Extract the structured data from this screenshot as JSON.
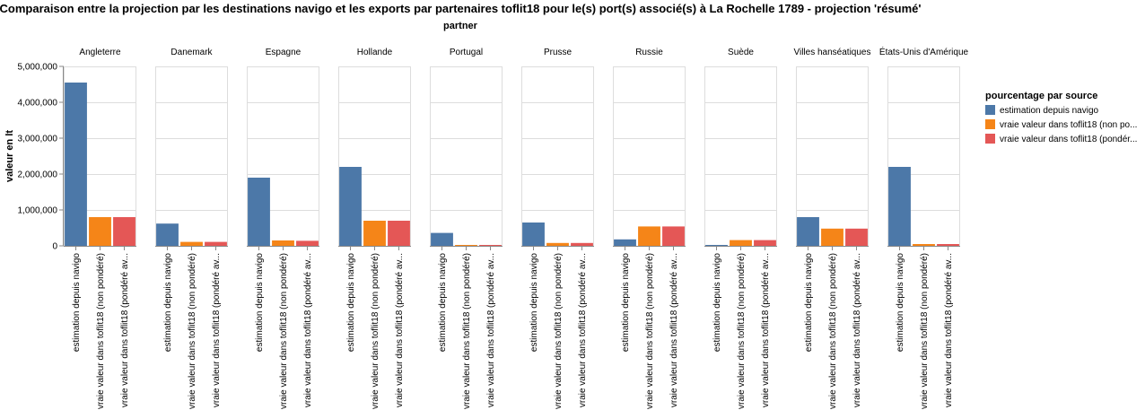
{
  "colors": {
    "estimation": "#4c78a8",
    "non_pondere": "#f58518",
    "pondere": "#e45756",
    "grid": "#dddddd",
    "axis": "#888888"
  },
  "chart_data": {
    "type": "bar",
    "title": "Comparaison entre la projection par les destinations navigo et les exports par partenaires toflit18 pour le(s) port(s) associé(s) à La Rochelle 1789 - projection 'résumé'",
    "facet_title": "partner",
    "ylabel": "valeur en lt",
    "ylim": [
      0,
      5000000
    ],
    "yticks": [
      0,
      1000000,
      2000000,
      3000000,
      4000000,
      5000000
    ],
    "ytick_labels": [
      "0",
      "1,000,000",
      "2,000,000",
      "3,000,000",
      "4,000,000",
      "5,000,000"
    ],
    "bar_labels": [
      "estimation depuis navigo",
      "vraie valeur dans toflit18 (non pondéré)",
      "vraie valeur dans toflit18 (pondéré av..."
    ],
    "legend": {
      "title": "pourcentage par source",
      "position": "right",
      "entries": [
        "estimation depuis navigo",
        "vraie valeur dans toflit18 (non po...",
        "vraie valeur dans toflit18 (pondér..."
      ]
    },
    "series": [
      {
        "name": "estimation depuis navigo",
        "color_key": "estimation",
        "values": [
          4550000,
          620000,
          1900000,
          2200000,
          360000,
          650000,
          180000,
          0,
          800000,
          2200000
        ]
      },
      {
        "name": "vraie valeur dans toflit18 (non pondéré)",
        "color_key": "non_pondere",
        "values": [
          800000,
          110000,
          150000,
          700000,
          8000,
          80000,
          540000,
          160000,
          480000,
          50000
        ]
      },
      {
        "name": "vraie valeur dans toflit18 (pondéré av...",
        "color_key": "pondere",
        "values": [
          800000,
          110000,
          140000,
          700000,
          8000,
          80000,
          540000,
          160000,
          480000,
          50000
        ]
      }
    ],
    "categories": [
      "Angleterre",
      "Danemark",
      "Espagne",
      "Hollande",
      "Portugal",
      "Prusse",
      "Russie",
      "Suède",
      "Villes hanséatiques",
      "États-Unis d'Amérique"
    ]
  }
}
